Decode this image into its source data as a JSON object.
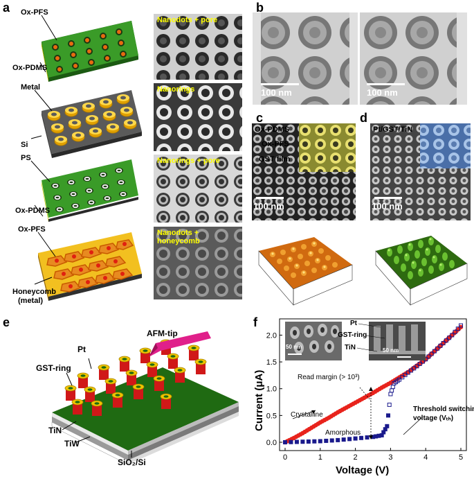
{
  "panels": {
    "a": {
      "label": "a",
      "schematics": {
        "s1": [
          "Ox-PFS",
          "Ox-PDMS"
        ],
        "s2": [
          "Metal",
          "Si"
        ],
        "s3": [
          "PS",
          "Ox-PDMS"
        ],
        "s4": [
          "Ox-PFS",
          "Honeycomb",
          "(metal)"
        ]
      },
      "sem_captions": [
        "Nanodots + pore",
        "Nanorings",
        "Nanorings + pore",
        "Nanodots +",
        "honeycomb"
      ]
    },
    "b": {
      "label": "b",
      "scale_left": "100 nm",
      "scale_right": "100 nm"
    },
    "c": {
      "label": "c",
      "layers": [
        "Ox-PDMS",
        "Ox-PFS",
        "GST film"
      ],
      "scale": "100 nm"
    },
    "d": {
      "label": "d",
      "stack": "Pt/GST/TiN",
      "scale": "100 nm"
    },
    "e": {
      "label": "e",
      "labels": [
        "AFM-tip",
        "Pt",
        "GST-ring",
        "TiN",
        "TiW",
        "SiO₂/Si"
      ]
    },
    "f": {
      "label": "f",
      "inset_labels": [
        "Pt",
        "GST-ring",
        "TiN"
      ],
      "inset_scales": [
        "50 nm",
        "50 nm"
      ],
      "annotations": {
        "read_margin": "Read margin (> 10³)",
        "crystalline": "Crystalline",
        "amorphous": "Amorphous",
        "threshold1": "Threshold switching",
        "threshold2": "voltage (Vₜₕ)"
      }
    }
  },
  "chart_data": {
    "type": "scatter",
    "xlabel": "Voltage (V)",
    "ylabel": "Current (μA)",
    "xlim": [
      0,
      5
    ],
    "ylim": [
      0,
      2.2
    ],
    "xticks": [
      "0",
      "1",
      "2",
      "3",
      "4",
      "5"
    ],
    "yticks": [
      "0.0",
      "0.5",
      "1.0",
      "1.5",
      "2.0"
    ],
    "series": [
      {
        "name": "Crystalline",
        "color": "#e8231c",
        "marker": "circle",
        "x": [
          0,
          0.25,
          0.5,
          0.75,
          1.0,
          1.25,
          1.5,
          1.75,
          2.0,
          2.25,
          2.5,
          2.75,
          3.0,
          3.25,
          3.5,
          3.75,
          4.0,
          4.25,
          4.5,
          4.75,
          5.0
        ],
        "y": [
          0,
          0.08,
          0.17,
          0.27,
          0.37,
          0.46,
          0.56,
          0.65,
          0.74,
          0.83,
          0.92,
          1.02,
          1.11,
          1.21,
          1.31,
          1.43,
          1.55,
          1.7,
          1.85,
          2.0,
          2.15
        ]
      },
      {
        "name": "Amorphous",
        "color": "#1a1a8c",
        "marker": "square-open",
        "x": [
          0,
          0.5,
          1.0,
          1.5,
          2.0,
          2.5,
          2.75,
          2.9,
          3.0,
          3.1,
          3.25,
          3.5,
          3.75,
          4.0,
          4.25,
          4.5,
          4.75,
          5.0
        ],
        "y": [
          0,
          0.01,
          0.02,
          0.04,
          0.07,
          0.1,
          0.13,
          0.3,
          0.9,
          1.1,
          1.17,
          1.3,
          1.42,
          1.55,
          1.7,
          1.85,
          2.0,
          2.18
        ]
      }
    ]
  },
  "colors": {
    "green": "#2f8f1f",
    "gold": "#f0b400",
    "orange": "#e87a10",
    "red": "#e8231c",
    "navy": "#1a1a8c",
    "magenta": "#e0208a"
  }
}
